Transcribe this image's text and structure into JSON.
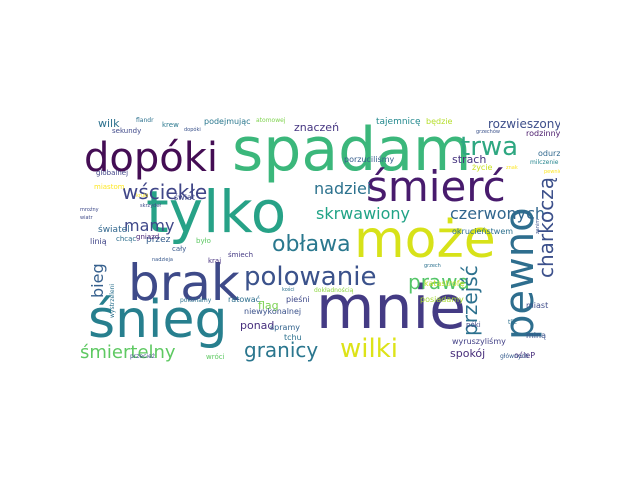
{
  "words": [
    {
      "text": "spadam",
      "color": "#3bb77b"
    },
    {
      "text": "tylko",
      "color": "#27a287"
    },
    {
      "text": "może",
      "color": "#d7e219"
    },
    {
      "text": "mnie",
      "color": "#443b84"
    },
    {
      "text": "brak",
      "color": "#3e4a89"
    },
    {
      "text": "śnieg",
      "color": "#277f8e"
    },
    {
      "text": "dopóki",
      "color": "#440d54"
    },
    {
      "text": "śmierć",
      "color": "#481b6d"
    },
    {
      "text": "pewno",
      "color": "#2e6e8e"
    },
    {
      "text": "polowanie",
      "color": "#3b528b"
    },
    {
      "text": "trwa",
      "color": "#2ea781"
    },
    {
      "text": "wściekłe",
      "color": "#404688"
    },
    {
      "text": "obława",
      "color": "#2a788e"
    },
    {
      "text": "wilki",
      "color": "#dde318"
    },
    {
      "text": "skrwawiony",
      "color": "#20a386"
    },
    {
      "text": "nadziei",
      "color": "#2c728e"
    },
    {
      "text": "granicy",
      "color": "#2a768e"
    },
    {
      "text": "czerwonych",
      "color": "#31668e"
    },
    {
      "text": "charkoczą",
      "color": "#3c508b"
    },
    {
      "text": "prawa",
      "color": "#54c568"
    },
    {
      "text": "przejść",
      "color": "#2c718e"
    },
    {
      "text": "śmiertelny",
      "color": "#5ec962"
    },
    {
      "text": "mamy",
      "color": "#3f4889"
    },
    {
      "text": "bieg",
      "color": "#355f8d"
    },
    {
      "text": "rozwieszonych",
      "color": "#3d4e8a"
    },
    {
      "text": "ponad",
      "color": "#472f7d"
    },
    {
      "text": "strach",
      "color": "#45337f"
    },
    {
      "text": "flag",
      "color": "#7ad151"
    },
    {
      "text": "spokój",
      "color": "#472c7a"
    },
    {
      "text": "znaczeń",
      "color": "#453581"
    },
    {
      "text": "wilk",
      "color": "#2c718e"
    },
    {
      "text": "podejmując",
      "color": "#2a788e"
    },
    {
      "text": "tajemnicę",
      "color": "#23898e"
    },
    {
      "text": "będzie",
      "color": "#b5de2b"
    },
    {
      "text": "rodzinny",
      "color": "#48186a"
    },
    {
      "text": "świat",
      "color": "#3f4788"
    },
    {
      "text": "przez",
      "color": "#355e8d"
    },
    {
      "text": "pieśni",
      "color": "#3e4989"
    },
    {
      "text": "porzuciliśmy",
      "color": "#365d8d"
    },
    {
      "text": "okrucieństwem",
      "color": "#2d708e"
    },
    {
      "text": "wyruszyliśmy",
      "color": "#424086"
    },
    {
      "text": "miast",
      "color": "#3e4c8a"
    },
    {
      "text": "miną",
      "color": "#3b528b"
    },
    {
      "text": "ośleP",
      "color": "#472d7b"
    },
    {
      "text": "katastrofę",
      "color": "#bddf26"
    },
    {
      "text": "posiadamy",
      "color": "#a8db34"
    },
    {
      "text": "życie",
      "color": "#c8e020"
    },
    {
      "text": "odurzeni",
      "color": "#31688e"
    },
    {
      "text": "milczenie",
      "color": "#25858e"
    },
    {
      "text": "niewykonalnej",
      "color": "#3b528b"
    },
    {
      "text": "ratować",
      "color": "#2e6f8e"
    },
    {
      "text": "spramy",
      "color": "#33638d"
    },
    {
      "text": "tchu",
      "color": "#2c718e"
    },
    {
      "text": "dokładnością",
      "color": "#8fd744"
    },
    {
      "text": "głównych",
      "color": "#365c8d"
    },
    {
      "text": "światel",
      "color": "#31678e"
    },
    {
      "text": "linią",
      "color": "#404588"
    },
    {
      "text": "sekundy",
      "color": "#3f4889"
    },
    {
      "text": "globalnej",
      "color": "#414487"
    },
    {
      "text": "krew",
      "color": "#2a788e"
    },
    {
      "text": "atomowej",
      "color": "#7fd34e"
    },
    {
      "text": "miastom",
      "color": "#fde725"
    },
    {
      "text": "chcąc",
      "color": "#2e6e8e"
    },
    {
      "text": "gniazd",
      "color": "#482475"
    },
    {
      "text": "cały",
      "color": "#38588c"
    },
    {
      "text": "było",
      "color": "#5dc863"
    },
    {
      "text": "kraj",
      "color": "#46307e"
    },
    {
      "text": "śmiech",
      "color": "#443983"
    },
    {
      "text": "pokonamy",
      "color": "#2c728e"
    },
    {
      "text": "wróci",
      "color": "#5ec962"
    },
    {
      "text": "przecież",
      "color": "#3e4a89"
    },
    {
      "text": "flandr",
      "color": "#2c718e"
    },
    {
      "text": "dopóki",
      "color": "#3b528b"
    },
    {
      "text": "mroźny",
      "color": "#3e4a89"
    },
    {
      "text": "wiatr",
      "color": "#3e4a89"
    },
    {
      "text": "póki",
      "color": "#3f4889"
    },
    {
      "text": "tlić",
      "color": "#2c718e"
    },
    {
      "text": "grzechów",
      "color": "#3b528b"
    },
    {
      "text": "znak",
      "color": "#fde725"
    },
    {
      "text": "pewnie",
      "color": "#fde725"
    },
    {
      "text": "nadzieja",
      "color": "#38588c"
    },
    {
      "text": "wystrzeleni",
      "color": "#2c718e"
    },
    {
      "text": "skrzydeł",
      "color": "#3e4a89"
    },
    {
      "text": "kruki",
      "color": "#fde725"
    },
    {
      "text": "kości",
      "color": "#2c718e"
    },
    {
      "text": "zanim",
      "color": "#3b528b"
    },
    {
      "text": "grzech",
      "color": "#2c718e"
    }
  ]
}
